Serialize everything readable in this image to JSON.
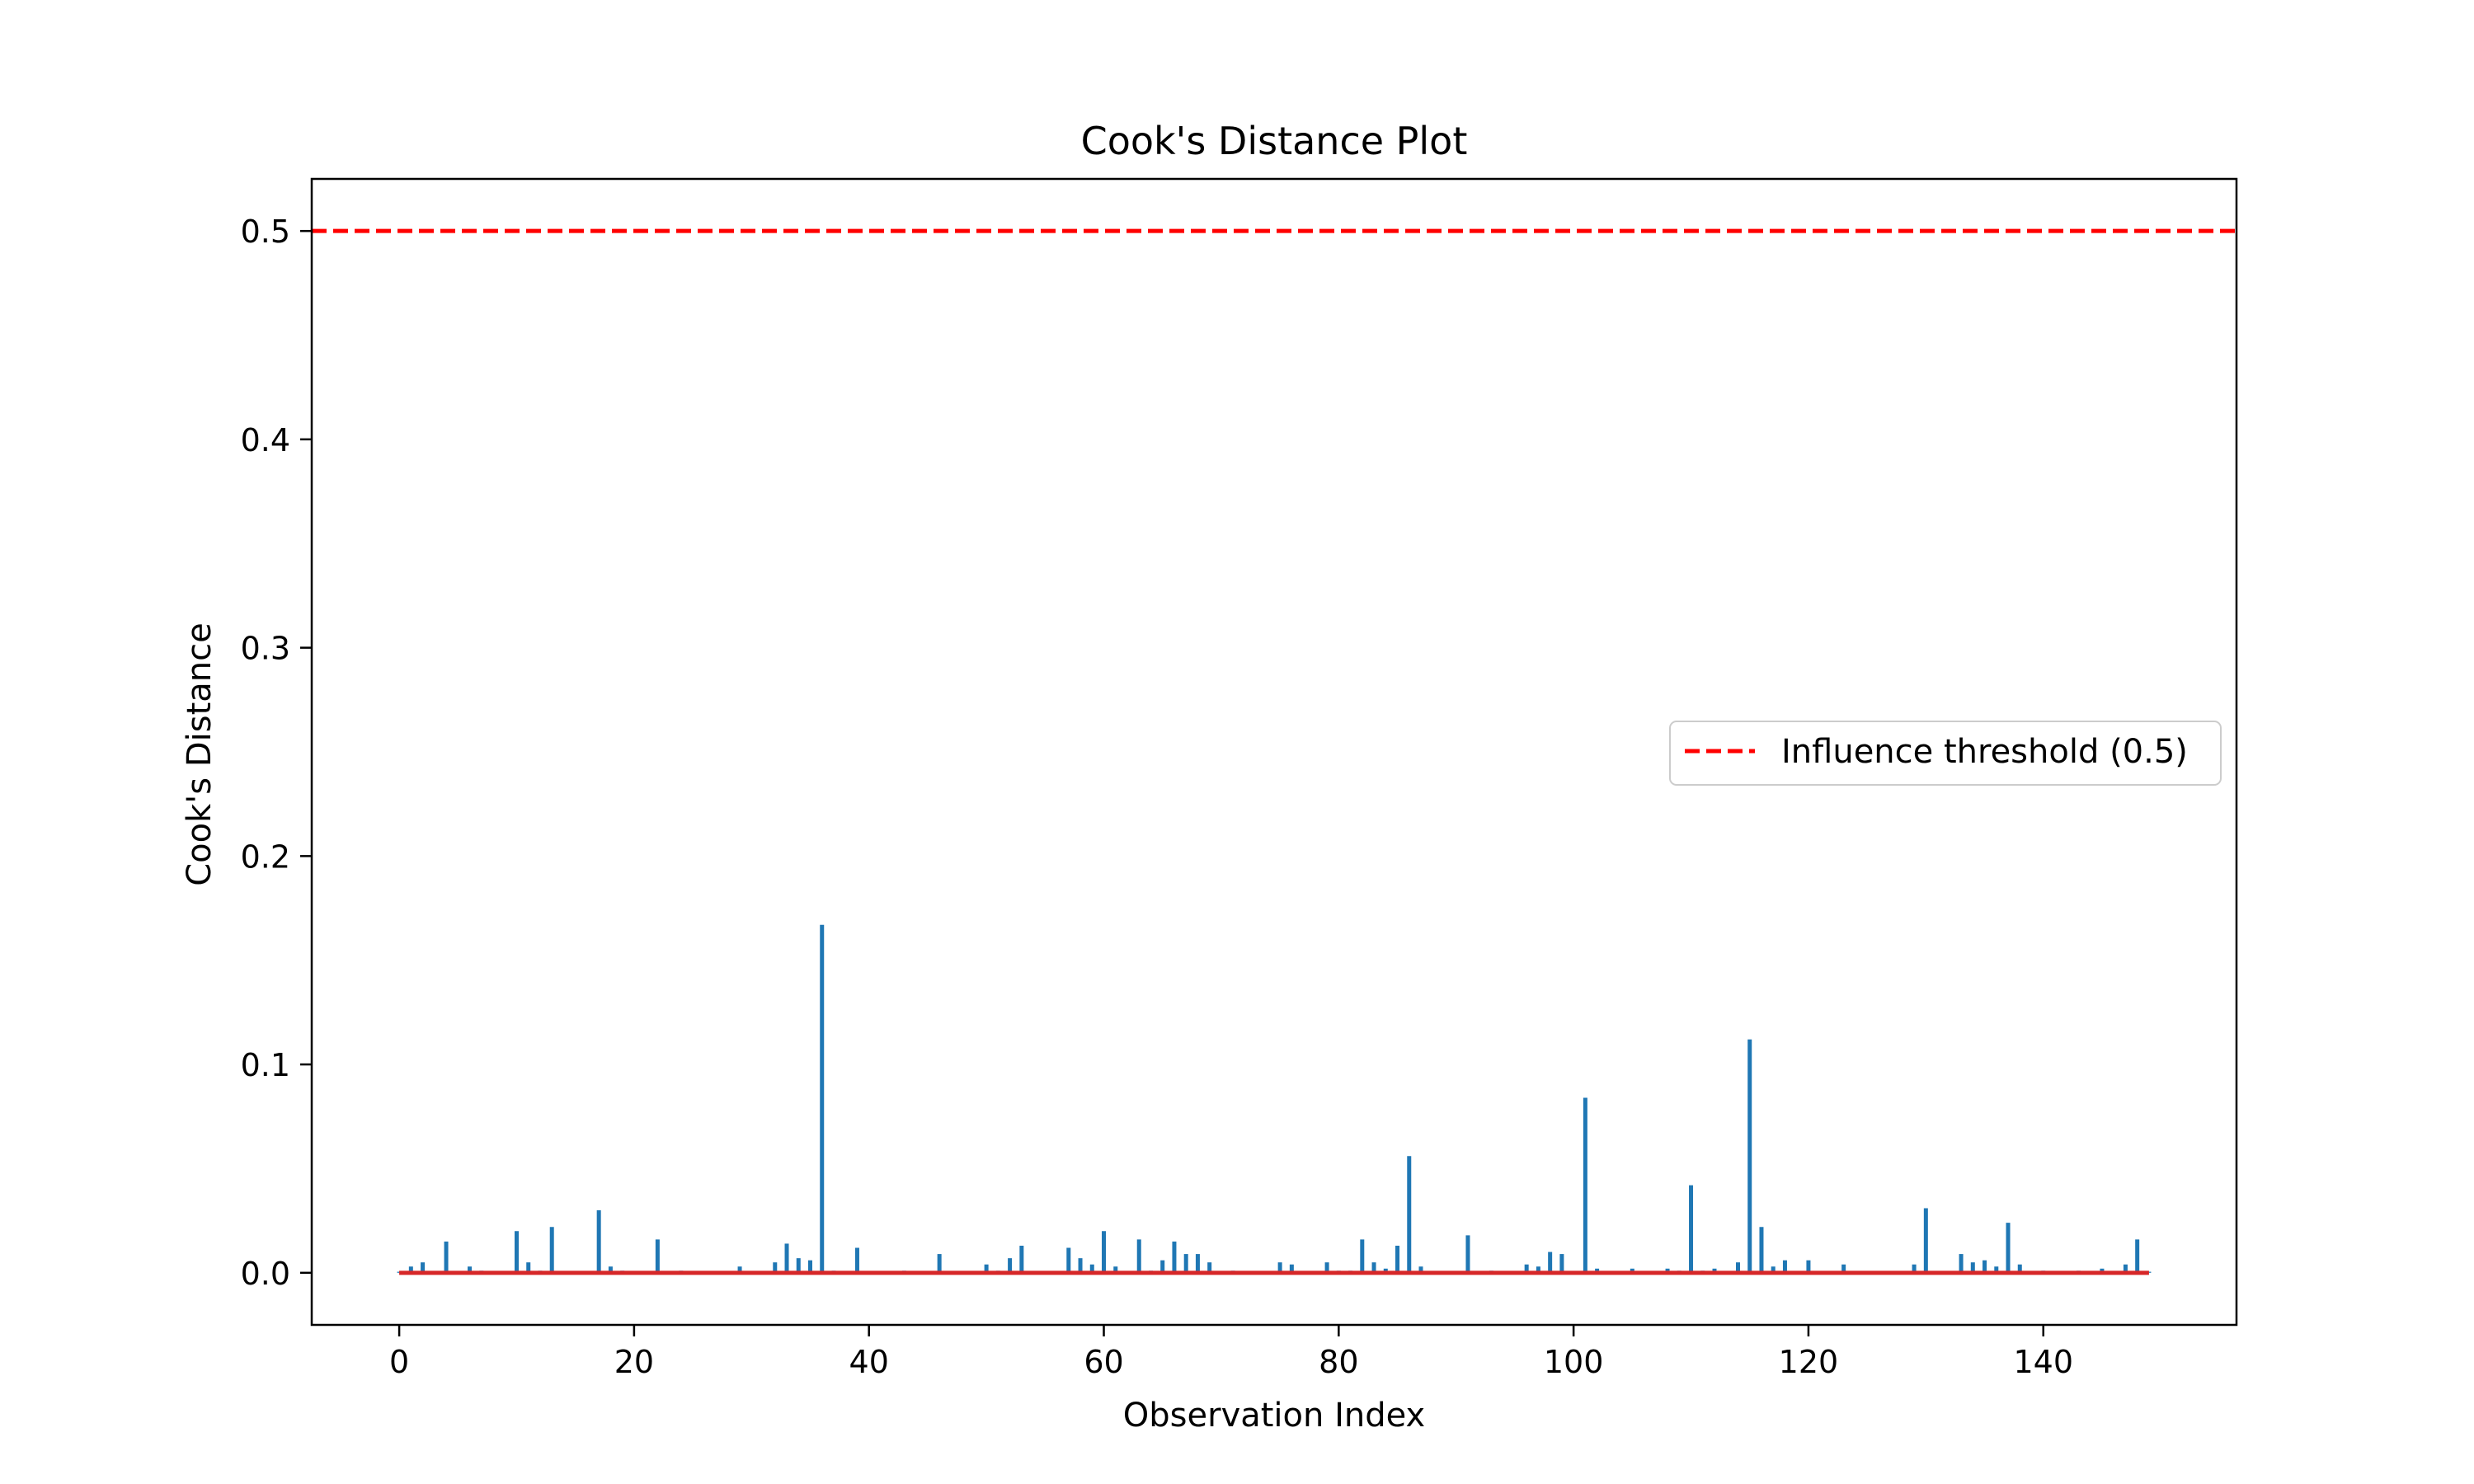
{
  "chart_data": {
    "type": "bar",
    "title": "Cook's Distance Plot",
    "xlabel": "Observation Index",
    "ylabel": "Cook's Distance",
    "xlim": [
      -7.45,
      156.45
    ],
    "ylim": [
      -0.025,
      0.525
    ],
    "xticks": [
      0,
      20,
      40,
      60,
      80,
      100,
      120,
      140
    ],
    "yticks": [
      0.0,
      0.1,
      0.2,
      0.3,
      0.4,
      0.5
    ],
    "ytick_labels": [
      "0.0",
      "0.1",
      "0.2",
      "0.3",
      "0.4",
      "0.5"
    ],
    "grid": false,
    "legend_position": "right",
    "stem_color": "#1f77b4",
    "baseline_color": "#d62728",
    "threshold": {
      "label": "Influence threshold (0.5)",
      "value": 0.5,
      "color": "#ff0000",
      "style": "dashed"
    },
    "x": [
      0,
      1,
      2,
      3,
      4,
      5,
      6,
      7,
      8,
      9,
      10,
      11,
      12,
      13,
      14,
      15,
      16,
      17,
      18,
      19,
      20,
      21,
      22,
      23,
      24,
      25,
      26,
      27,
      28,
      29,
      30,
      31,
      32,
      33,
      34,
      35,
      36,
      37,
      38,
      39,
      40,
      41,
      42,
      43,
      44,
      45,
      46,
      47,
      48,
      49,
      50,
      51,
      52,
      53,
      54,
      55,
      56,
      57,
      58,
      59,
      60,
      61,
      62,
      63,
      64,
      65,
      66,
      67,
      68,
      69,
      70,
      71,
      72,
      73,
      74,
      75,
      76,
      77,
      78,
      79,
      80,
      81,
      82,
      83,
      84,
      85,
      86,
      87,
      88,
      89,
      90,
      91,
      92,
      93,
      94,
      95,
      96,
      97,
      98,
      99,
      100,
      101,
      102,
      103,
      104,
      105,
      106,
      107,
      108,
      109,
      110,
      111,
      112,
      113,
      114,
      115,
      116,
      117,
      118,
      119,
      120,
      121,
      122,
      123,
      124,
      125,
      126,
      127,
      128,
      129,
      130,
      131,
      132,
      133,
      134,
      135,
      136,
      137,
      138,
      139,
      140,
      141,
      142,
      143,
      144,
      145,
      146,
      147,
      148,
      149
    ],
    "values": [
      0.0005,
      0.003,
      0.005,
      0.0005,
      0.015,
      0.0005,
      0.003,
      0.001,
      0.0005,
      0.0005,
      0.02,
      0.005,
      0.001,
      0.022,
      0.0005,
      0.0005,
      0.0005,
      0.03,
      0.003,
      0.001,
      0.0005,
      0.0005,
      0.016,
      0.0005,
      0.001,
      0.0005,
      0.0005,
      0.0005,
      0.0005,
      0.003,
      0.0005,
      0.0005,
      0.005,
      0.014,
      0.007,
      0.006,
      0.167,
      0.001,
      0.0005,
      0.012,
      0.0005,
      0.0005,
      0.0005,
      0.001,
      0.0005,
      0.0005,
      0.009,
      0.0005,
      0.0005,
      0.0005,
      0.004,
      0.001,
      0.007,
      0.013,
      0.0005,
      0.0005,
      0.0005,
      0.012,
      0.007,
      0.004,
      0.02,
      0.003,
      0.0005,
      0.016,
      0.001,
      0.006,
      0.015,
      0.009,
      0.009,
      0.005,
      0.0005,
      0.001,
      0.0005,
      0.0005,
      0.0005,
      0.005,
      0.004,
      0.0005,
      0.0005,
      0.005,
      0.001,
      0.001,
      0.016,
      0.005,
      0.002,
      0.013,
      0.056,
      0.003,
      0.0005,
      0.0005,
      0.0005,
      0.018,
      0.0005,
      0.001,
      0.0005,
      0.0005,
      0.004,
      0.003,
      0.01,
      0.009,
      0.0005,
      0.084,
      0.002,
      0.0005,
      0.0005,
      0.002,
      0.0005,
      0.0005,
      0.002,
      0.001,
      0.042,
      0.001,
      0.002,
      0.0005,
      0.005,
      0.112,
      0.022,
      0.003,
      0.006,
      0.0005,
      0.006,
      0.0005,
      0.0005,
      0.004,
      0.0005,
      0.0005,
      0.0005,
      0.0005,
      0.0005,
      0.004,
      0.031,
      0.0005,
      0.0005,
      0.009,
      0.005,
      0.006,
      0.003,
      0.024,
      0.004,
      0.0005,
      0.001,
      0.0005,
      0.0005,
      0.001,
      0.0005,
      0.002,
      0.0005,
      0.004,
      0.016,
      0.0005
    ]
  }
}
